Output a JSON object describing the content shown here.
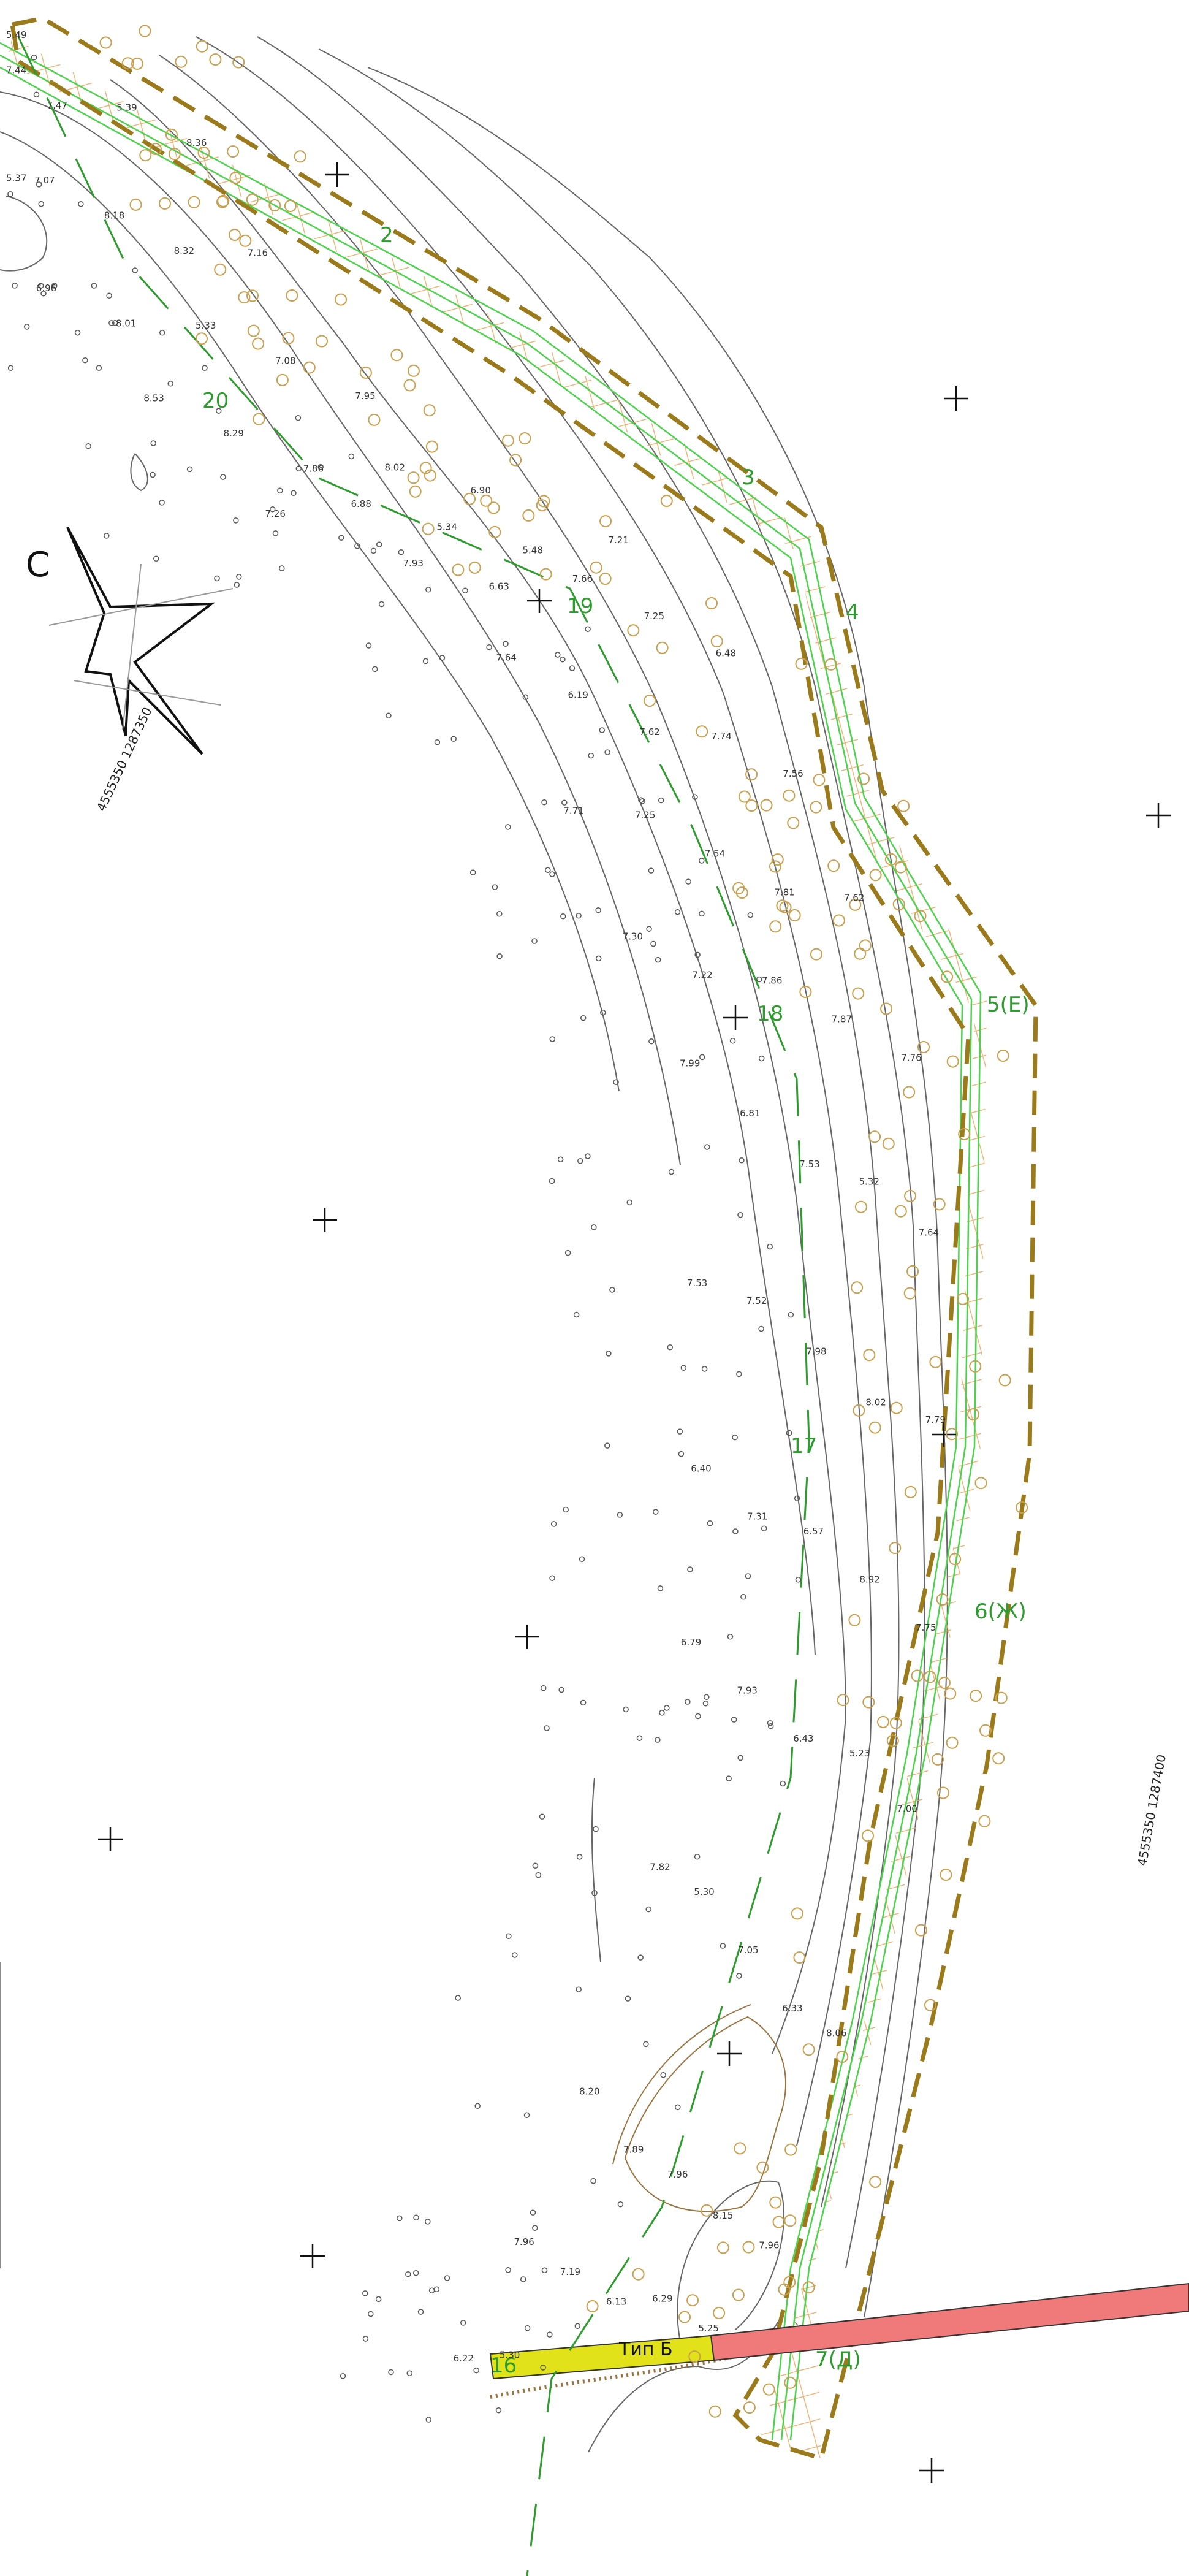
{
  "north_label": "С",
  "coord_labels": [
    "4555350 1287350",
    "4555350 1287400"
  ],
  "road_label": "Тип Б",
  "point_labels": [
    "2",
    "3",
    "4",
    "5(Е)",
    "6(Ж)",
    "7(Д)",
    "16",
    "17",
    "18",
    "19",
    "20"
  ],
  "elevations": [
    "5.49",
    "7.44",
    "7.47",
    "5.39",
    "8.36",
    "5.37",
    "7.07",
    "8.18",
    "8.32",
    "7.16",
    "6.96",
    "8.01",
    "5.33",
    "7.08",
    "7.95",
    "8.53",
    "8.29",
    "7.86",
    "8.02",
    "6.90",
    "7.26",
    "6.88",
    "5.34",
    "5.48",
    "7.21",
    "7.93",
    "6.63",
    "7.66",
    "7.25",
    "6.48",
    "7.64",
    "6.19",
    "7.62",
    "7.74",
    "7.56",
    "7.71",
    "7.25",
    "7.54",
    "7.81",
    "7.62",
    "7.30",
    "7.22",
    "7.86",
    "7.87",
    "7.76",
    "7.99",
    "6.81",
    "7.53",
    "5.32",
    "7.64",
    "7.53",
    "7.52",
    "7.98",
    "8.02",
    "7.79",
    "6.40",
    "7.31",
    "6.57",
    "8.92",
    "7.75",
    "6.79",
    "7.93",
    "6.43",
    "5.23",
    "7.00",
    "7.82",
    "5.30",
    "7.05",
    "6.33",
    "8.06",
    "8.20",
    "7.89",
    "7.96",
    "8.15",
    "7.96",
    "7.96",
    "7.19",
    "6.13",
    "6.29",
    "5.25",
    "6.22",
    "5.30"
  ]
}
